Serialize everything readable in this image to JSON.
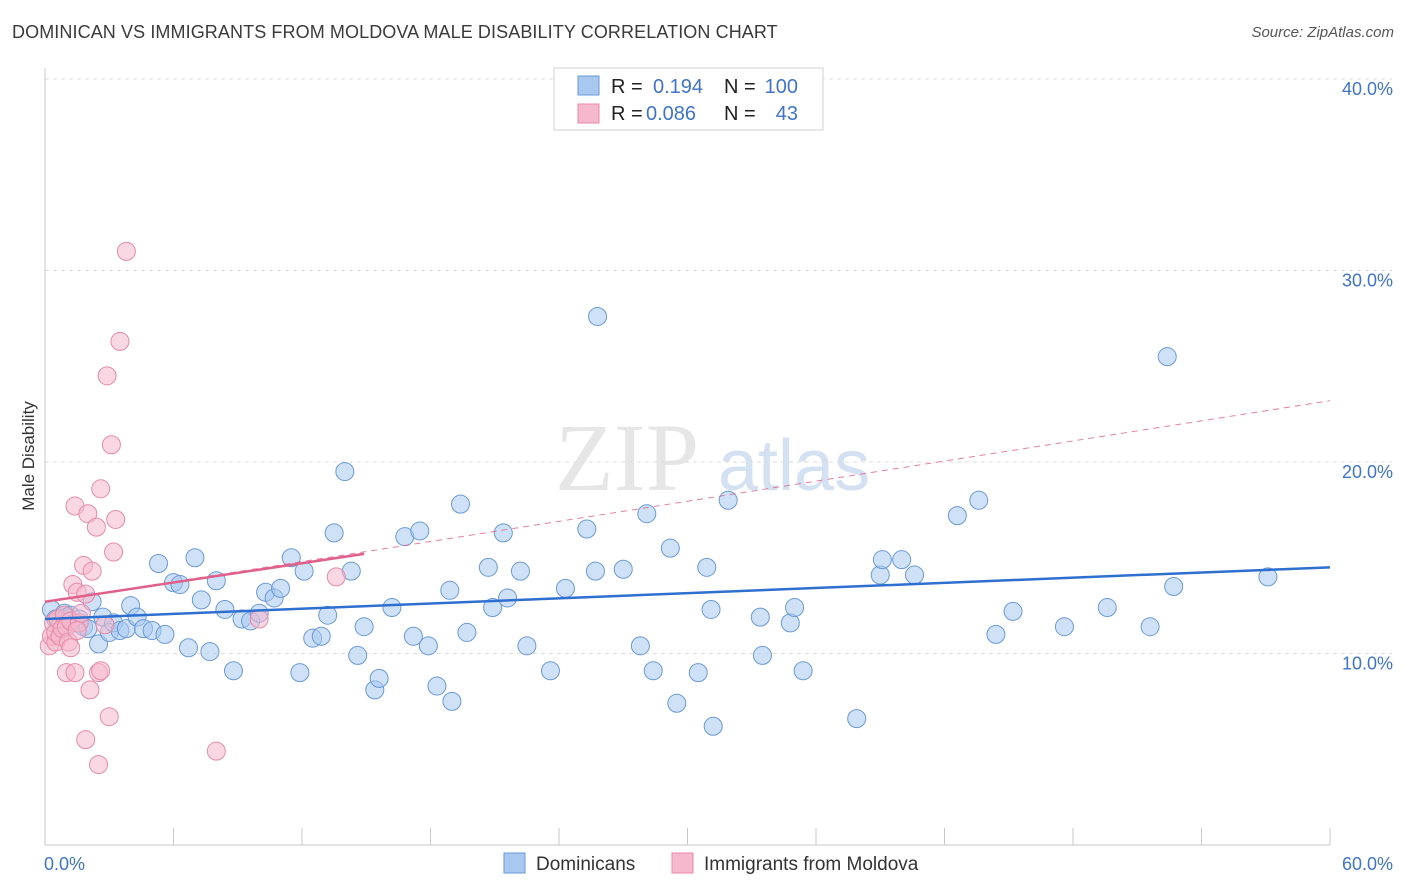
{
  "title": "DOMINICAN VS IMMIGRANTS FROM MOLDOVA MALE DISABILITY CORRELATION CHART",
  "source": "Source: ZipAtlas.com",
  "watermark": {
    "zip": "ZIP",
    "atlas": "atlas"
  },
  "legend": {
    "rows": [
      {
        "r_label": "R =",
        "r_value": "0.194",
        "n_label": "N =",
        "n_value": "100"
      },
      {
        "r_label": "R =",
        "r_value": "0.086",
        "n_label": "N =",
        "n_value": "43"
      }
    ]
  },
  "colors": {
    "blue_fill": "#a8c8f0",
    "blue_stroke": "#6a9ad8",
    "blue_line": "#2f6fcf",
    "pink_fill": "#f6b8cc",
    "pink_stroke": "#e88aa8",
    "pink_line": "#e0608a",
    "axis_text": "#3f74c8",
    "grid": "#dddddd"
  },
  "chart_data": {
    "type": "scatter",
    "title": "DOMINICAN VS IMMIGRANTS FROM MOLDOVA MALE DISABILITY CORRELATION CHART",
    "xlabel": "",
    "ylabel": "Male Disability",
    "xlim": [
      0,
      60
    ],
    "ylim": [
      0,
      40
    ],
    "x_tick_labels": [
      "0.0%",
      "60.0%"
    ],
    "y_tick_labels": [
      "10.0%",
      "20.0%",
      "30.0%",
      "40.0%"
    ],
    "y_ticks": [
      10,
      20,
      30,
      40
    ],
    "legend_position": "bottom-center",
    "series": [
      {
        "name": "Dominicans",
        "color": "blue",
        "r": 0.194,
        "n": 100,
        "trend": {
          "x0": 0,
          "y0": 11.8,
          "x1": 60,
          "y1": 14.5,
          "dashed_x1": null
        },
        "points": [
          [
            0.3,
            12.3
          ],
          [
            0.5,
            11.8
          ],
          [
            0.7,
            11.5
          ],
          [
            0.9,
            12.1
          ],
          [
            1.0,
            11.9
          ],
          [
            1.2,
            12.0
          ],
          [
            1.4,
            11.6
          ],
          [
            1.6,
            11.8
          ],
          [
            1.8,
            11.4
          ],
          [
            2.0,
            11.3
          ],
          [
            2.2,
            12.7
          ],
          [
            2.5,
            10.5
          ],
          [
            2.7,
            11.9
          ],
          [
            3.0,
            11.1
          ],
          [
            3.2,
            11.6
          ],
          [
            3.5,
            11.2
          ],
          [
            3.8,
            11.3
          ],
          [
            4.0,
            12.5
          ],
          [
            4.3,
            11.9
          ],
          [
            4.6,
            11.3
          ],
          [
            5.0,
            11.2
          ],
          [
            5.3,
            14.7
          ],
          [
            5.6,
            11.0
          ],
          [
            6.0,
            13.7
          ],
          [
            6.3,
            13.6
          ],
          [
            6.7,
            10.3
          ],
          [
            7.0,
            15.0
          ],
          [
            7.3,
            12.8
          ],
          [
            7.7,
            10.1
          ],
          [
            8.0,
            13.8
          ],
          [
            8.4,
            12.3
          ],
          [
            8.8,
            9.1
          ],
          [
            9.2,
            11.8
          ],
          [
            9.6,
            11.7
          ],
          [
            10.0,
            12.1
          ],
          [
            10.3,
            13.2
          ],
          [
            10.7,
            12.9
          ],
          [
            11.0,
            13.4
          ],
          [
            11.5,
            15.0
          ],
          [
            11.9,
            9.0
          ],
          [
            12.1,
            14.3
          ],
          [
            12.5,
            10.8
          ],
          [
            12.9,
            10.9
          ],
          [
            13.2,
            12.0
          ],
          [
            13.5,
            16.3
          ],
          [
            14.0,
            19.5
          ],
          [
            14.3,
            14.3
          ],
          [
            14.6,
            9.9
          ],
          [
            14.9,
            11.4
          ],
          [
            15.4,
            8.1
          ],
          [
            15.6,
            8.7
          ],
          [
            16.2,
            12.4
          ],
          [
            16.8,
            16.1
          ],
          [
            17.2,
            10.9
          ],
          [
            17.5,
            16.4
          ],
          [
            17.9,
            10.4
          ],
          [
            18.3,
            8.3
          ],
          [
            18.9,
            13.3
          ],
          [
            19.0,
            7.5
          ],
          [
            19.4,
            17.8
          ],
          [
            19.7,
            11.1
          ],
          [
            20.7,
            14.5
          ],
          [
            20.9,
            12.4
          ],
          [
            21.4,
            16.3
          ],
          [
            21.6,
            12.9
          ],
          [
            22.2,
            14.3
          ],
          [
            22.5,
            10.4
          ],
          [
            23.6,
            9.1
          ],
          [
            24.3,
            13.4
          ],
          [
            25.3,
            16.5
          ],
          [
            25.7,
            14.3
          ],
          [
            25.8,
            27.6
          ],
          [
            27.0,
            14.4
          ],
          [
            27.8,
            10.4
          ],
          [
            28.1,
            17.3
          ],
          [
            28.4,
            9.1
          ],
          [
            29.2,
            15.5
          ],
          [
            29.5,
            7.4
          ],
          [
            30.5,
            9.0
          ],
          [
            30.9,
            14.5
          ],
          [
            31.1,
            12.3
          ],
          [
            31.2,
            6.2
          ],
          [
            31.9,
            18.0
          ],
          [
            33.4,
            11.9
          ],
          [
            33.5,
            9.9
          ],
          [
            34.8,
            11.6
          ],
          [
            35.0,
            12.4
          ],
          [
            35.4,
            9.1
          ],
          [
            37.9,
            6.6
          ],
          [
            39.0,
            14.1
          ],
          [
            39.1,
            14.9
          ],
          [
            40.0,
            14.9
          ],
          [
            40.6,
            14.1
          ],
          [
            42.6,
            17.2
          ],
          [
            43.6,
            18.0
          ],
          [
            44.4,
            11.0
          ],
          [
            45.2,
            12.2
          ],
          [
            47.6,
            11.4
          ],
          [
            49.6,
            12.4
          ],
          [
            51.6,
            11.4
          ],
          [
            52.4,
            25.5
          ],
          [
            52.7,
            13.5
          ],
          [
            57.1,
            14.0
          ]
        ]
      },
      {
        "name": "Immigrants from Moldova",
        "color": "pink",
        "r": 0.086,
        "n": 43,
        "trend": {
          "x0": 0,
          "y0": 12.7,
          "x1": 14.9,
          "y1": 15.2,
          "dashed_x1": 60,
          "dashed_y1": 23.2
        },
        "points": [
          [
            0.2,
            10.4
          ],
          [
            0.3,
            10.9
          ],
          [
            0.4,
            11.6
          ],
          [
            0.5,
            10.6
          ],
          [
            0.5,
            11.1
          ],
          [
            0.6,
            11.8
          ],
          [
            0.7,
            10.9
          ],
          [
            0.8,
            11.3
          ],
          [
            0.9,
            12.0
          ],
          [
            1.0,
            11.4
          ],
          [
            1.1,
            10.6
          ],
          [
            1.2,
            10.3
          ],
          [
            1.2,
            11.7
          ],
          [
            1.3,
            13.6
          ],
          [
            1.4,
            17.7
          ],
          [
            1.5,
            13.2
          ],
          [
            1.6,
            11.6
          ],
          [
            1.7,
            12.1
          ],
          [
            1.8,
            14.6
          ],
          [
            1.9,
            13.1
          ],
          [
            2.0,
            17.3
          ],
          [
            2.1,
            8.1
          ],
          [
            2.2,
            14.3
          ],
          [
            2.4,
            16.6
          ],
          [
            2.5,
            9.0
          ],
          [
            2.6,
            18.6
          ],
          [
            2.8,
            11.5
          ],
          [
            2.9,
            24.5
          ],
          [
            3.0,
            6.7
          ],
          [
            3.1,
            20.9
          ],
          [
            3.2,
            15.3
          ],
          [
            3.3,
            17.0
          ],
          [
            3.5,
            26.3
          ],
          [
            3.8,
            31.0
          ],
          [
            1.0,
            9.0
          ],
          [
            1.4,
            9.0
          ],
          [
            2.6,
            9.1
          ],
          [
            1.9,
            5.5
          ],
          [
            2.5,
            4.2
          ],
          [
            8.0,
            4.9
          ],
          [
            10.0,
            11.8
          ],
          [
            13.6,
            14.0
          ],
          [
            1.5,
            11.2
          ]
        ]
      }
    ]
  },
  "bottom_legend": [
    {
      "label": "Dominicans",
      "color": "blue"
    },
    {
      "label": "Immigrants from Moldova",
      "color": "pink"
    }
  ]
}
